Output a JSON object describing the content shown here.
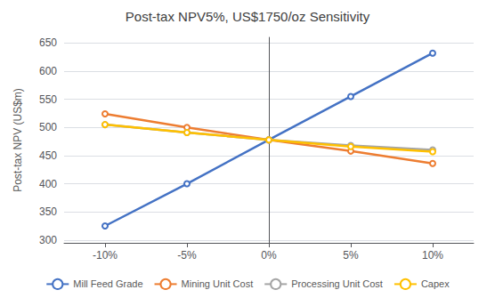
{
  "chart_data": {
    "type": "line",
    "title": "Post-tax NPV5%, US$1750/oz Sensitivity",
    "y_label": "Post-tax NPV (US$m)",
    "x": [
      -10,
      -5,
      0,
      5,
      10
    ],
    "series": [
      {
        "name": "Mill Feed Grade",
        "color": "#4472C4",
        "values": [
          325,
          400,
          478,
          555,
          632
        ]
      },
      {
        "name": "Mining Unit Cost",
        "color": "#ED7D31",
        "values": [
          524,
          500,
          478,
          458,
          436
        ]
      },
      {
        "name": "Processing Unit Cost",
        "color": "#A5A5A5",
        "values": [
          505,
          491,
          478,
          468,
          460
        ]
      },
      {
        "name": "Capex",
        "color": "#FFC000",
        "values": [
          505,
          491,
          478,
          466,
          457
        ]
      }
    ],
    "xlim": [
      -12.5,
      12.5
    ],
    "xticks": [
      {
        "value": -10,
        "label": "-10%"
      },
      {
        "value": -5,
        "label": "-5%"
      },
      {
        "value": 0,
        "label": "0%"
      },
      {
        "value": 5,
        "label": "5%"
      },
      {
        "value": 10,
        "label": "10%"
      }
    ],
    "ylim": [
      295,
      660
    ],
    "yticks": [
      300,
      350,
      400,
      450,
      500,
      550,
      600,
      650
    ],
    "grid": true,
    "legend": "bottom"
  }
}
